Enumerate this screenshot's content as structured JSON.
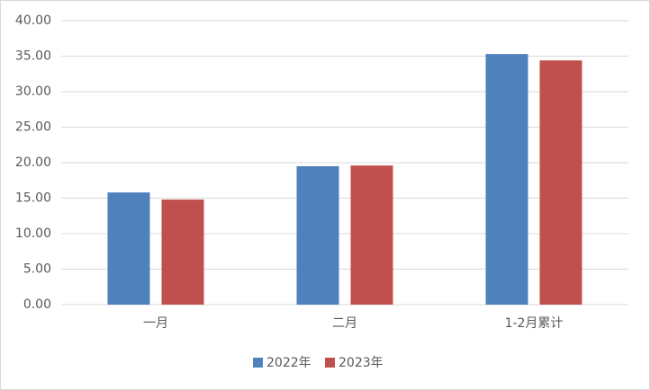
{
  "chart_data": {
    "type": "bar",
    "categories": [
      "一月",
      "二月",
      "1-2月累计"
    ],
    "series": [
      {
        "name": "2022年",
        "color": "#4f81bd",
        "values": [
          15.8,
          19.5,
          35.3
        ]
      },
      {
        "name": "2023年",
        "color": "#c0504d",
        "values": [
          14.8,
          19.6,
          34.4
        ]
      }
    ],
    "ylim": [
      0,
      40
    ],
    "yticks": [
      {
        "value": 0,
        "label": "0.00"
      },
      {
        "value": 5,
        "label": "5.00"
      },
      {
        "value": 10,
        "label": "10.00"
      },
      {
        "value": 15,
        "label": "15.00"
      },
      {
        "value": 20,
        "label": "20.00"
      },
      {
        "value": 25,
        "label": "25.00"
      },
      {
        "value": 30,
        "label": "30.00"
      },
      {
        "value": 35,
        "label": "35.00"
      },
      {
        "value": 40,
        "label": "40.00"
      }
    ],
    "grid": true
  }
}
